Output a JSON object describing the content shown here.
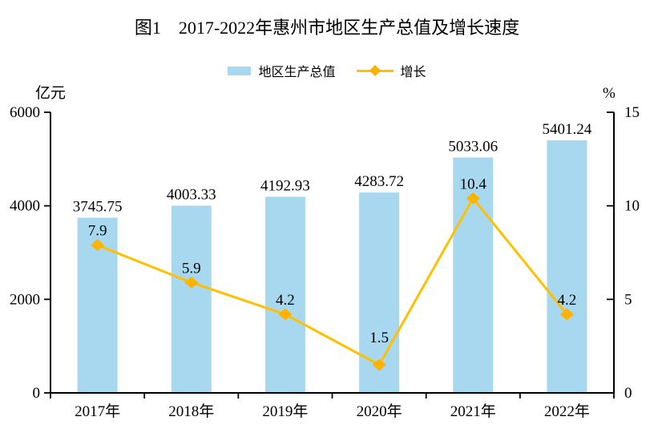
{
  "title": "图1　2017-2022年惠州市地区生产总值及增长速度",
  "legend": {
    "bar_label": "地区生产总值",
    "line_label": "增长"
  },
  "colors": {
    "bar": "#A8D8F0",
    "line": "#FFC000",
    "marker": "#FFB300",
    "axis": "#000000",
    "text": "#000000"
  },
  "chart_data": {
    "type": "bar",
    "subtype": "bar+line-dual-axis",
    "title": "图1　2017-2022年惠州市地区生产总值及增长速度",
    "categories": [
      "2017年",
      "2018年",
      "2019年",
      "2020年",
      "2021年",
      "2022年"
    ],
    "series": [
      {
        "name": "地区生产总值",
        "type": "bar",
        "axis": "left",
        "color": "#A8D8F0",
        "values": [
          3745.75,
          4003.33,
          4192.93,
          4283.72,
          5033.06,
          5401.24
        ]
      },
      {
        "name": "增长",
        "type": "line",
        "axis": "right",
        "color": "#FFC000",
        "marker": "diamond",
        "marker_color": "#FFB300",
        "values": [
          7.9,
          5.9,
          4.2,
          1.5,
          10.4,
          4.2
        ]
      }
    ],
    "left_axis": {
      "label": "亿元",
      "min": 0,
      "max": 6000,
      "ticks": [
        0,
        2000,
        4000,
        6000
      ]
    },
    "right_axis": {
      "label": "%",
      "min": 0,
      "max": 15,
      "ticks": [
        0,
        5,
        10,
        15
      ]
    },
    "grid": false,
    "legend_position": "top",
    "data_labels": true
  }
}
